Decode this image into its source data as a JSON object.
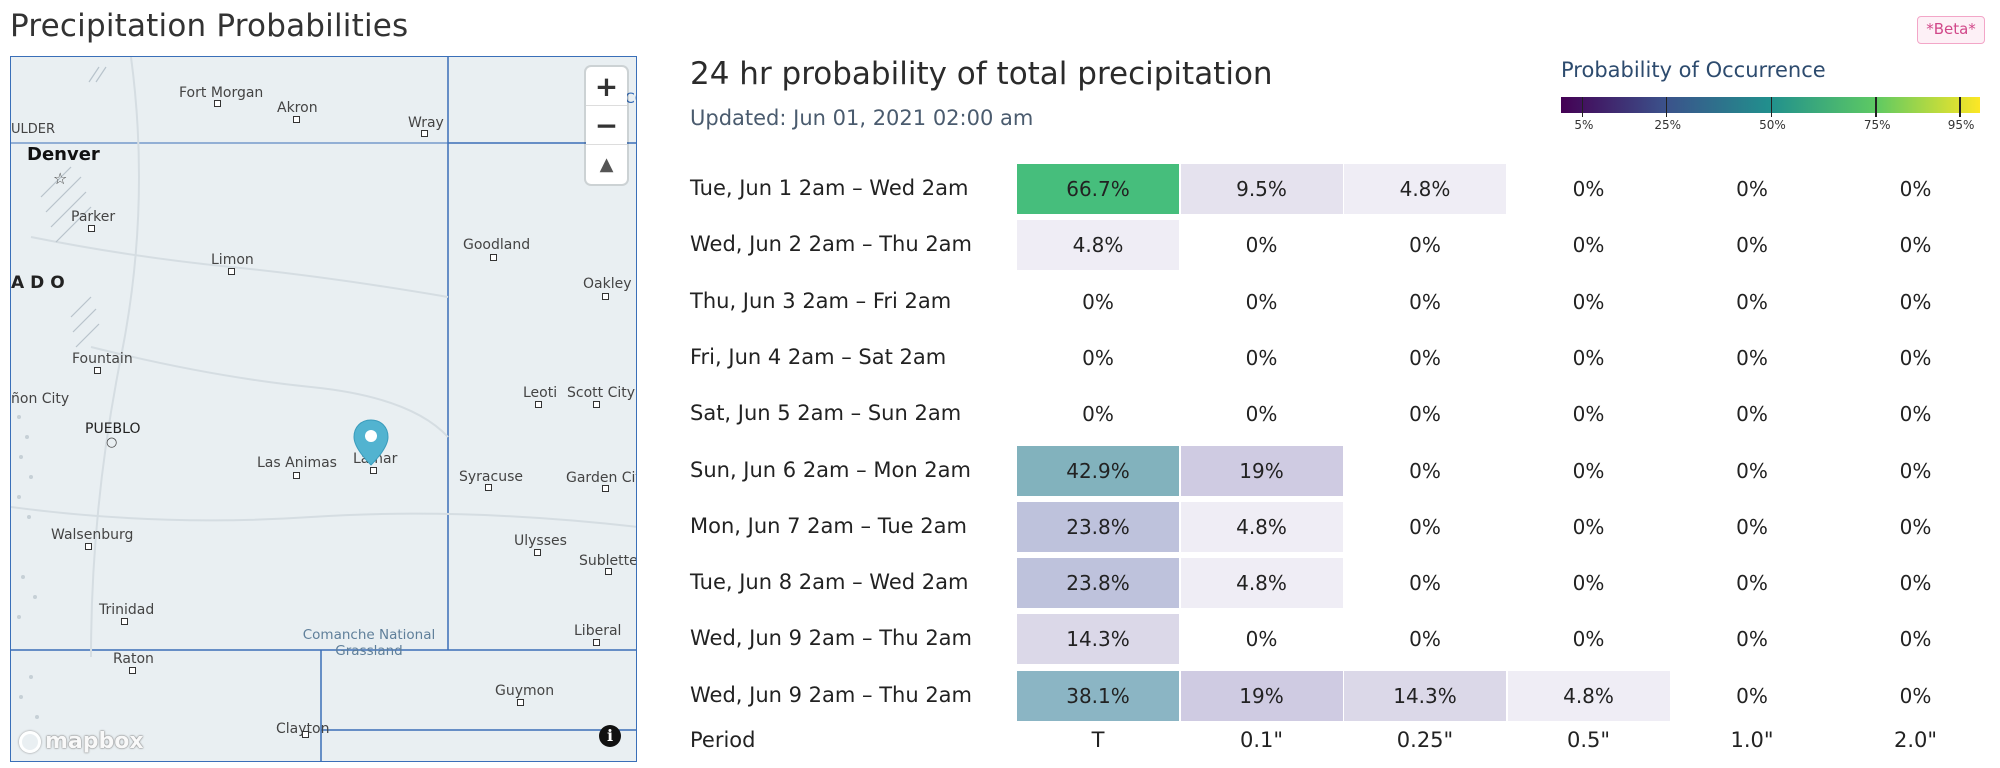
{
  "page_title": "Precipitation Probabilities",
  "beta_badge": "*Beta*",
  "map": {
    "labels": {
      "fort_morgan": "Fort Morgan",
      "akron": "Akron",
      "wray": "Wray",
      "boulder": "ULDER",
      "denver": "Denver",
      "parker": "Parker",
      "limon": "Limon",
      "goodland": "Goodland",
      "oakley": "Oakley",
      "state": "ADO",
      "fountain": "Fountain",
      "canon_city": "ñon City",
      "pueblo": "PUEBLO",
      "las_animas": "Las Animas",
      "lamar": "Lamar",
      "leoti": "Leoti",
      "scott_city": "Scott City",
      "syracuse": "Syracuse",
      "garden_city": "Garden City",
      "walsenburg": "Walsenburg",
      "ulysses": "Ulysses",
      "sublette": "Sublette",
      "trinidad": "Trinidad",
      "comanche": "Comanche National Grassland",
      "liberal": "Liberal",
      "raton": "Raton",
      "guymon": "Guymon",
      "clayton": "Clayton",
      "edge_co": "CO"
    },
    "zoom_in": "+",
    "zoom_out": "−",
    "compass": "▲",
    "attribution_logo": "mapbox",
    "info_icon": "i"
  },
  "chart_title": "24 hr probability of total precipitation",
  "updated": "Updated: Jun 01, 2021 02:00 am",
  "legend": {
    "title": "Probability of Occurrence",
    "ticks": [
      "5%",
      "25%",
      "50%",
      "75%",
      "95%"
    ],
    "tick_values": [
      5,
      25,
      50,
      75,
      95
    ]
  },
  "chart_data": {
    "type": "heatmap",
    "title": "24 hr probability of total precipitation",
    "xlabel": "Period",
    "columns": [
      "T",
      "0.1\"",
      "0.25\"",
      "0.5\"",
      "1.0\"",
      "2.0\""
    ],
    "rows": [
      {
        "label": "Tue, Jun 1 2am – Wed 2am",
        "values": [
          66.7,
          9.5,
          4.8,
          0,
          0,
          0
        ]
      },
      {
        "label": "Wed, Jun 2 2am – Thu 2am",
        "values": [
          4.8,
          0,
          0,
          0,
          0,
          0
        ]
      },
      {
        "label": "Thu, Jun 3 2am – Fri 2am",
        "values": [
          0,
          0,
          0,
          0,
          0,
          0
        ]
      },
      {
        "label": "Fri, Jun 4 2am – Sat 2am",
        "values": [
          0,
          0,
          0,
          0,
          0,
          0
        ]
      },
      {
        "label": "Sat, Jun 5 2am – Sun 2am",
        "values": [
          0,
          0,
          0,
          0,
          0,
          0
        ]
      },
      {
        "label": "Sun, Jun 6 2am – Mon 2am",
        "values": [
          42.9,
          19,
          0,
          0,
          0,
          0
        ]
      },
      {
        "label": "Mon, Jun 7 2am – Tue 2am",
        "values": [
          23.8,
          4.8,
          0,
          0,
          0,
          0
        ]
      },
      {
        "label": "Tue, Jun 8 2am – Wed 2am",
        "values": [
          23.8,
          4.8,
          0,
          0,
          0,
          0
        ]
      },
      {
        "label": "Wed, Jun 9 2am – Thu 2am",
        "values": [
          14.3,
          0,
          0,
          0,
          0,
          0
        ]
      },
      {
        "label": "Wed, Jun 9 2am – Thu 2am",
        "values": [
          38.1,
          19,
          14.3,
          4.8,
          0,
          0
        ]
      }
    ],
    "colorscale": "viridis (light)",
    "range": [
      0,
      100
    ]
  }
}
